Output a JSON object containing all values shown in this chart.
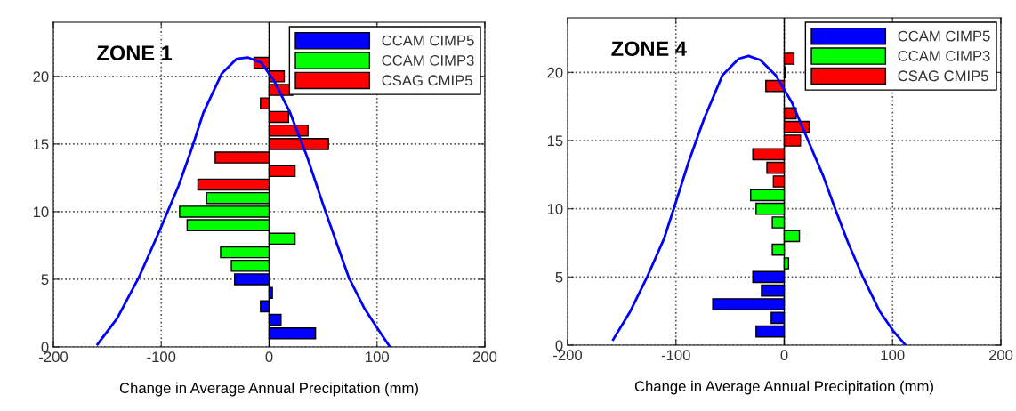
{
  "chart_data": [
    {
      "type": "bar",
      "orientation": "horizontal",
      "title": "ZONE 1",
      "xlabel": "Change in Average Annual Precipitation (mm)",
      "xlim": [
        -200,
        200
      ],
      "xticks": [
        -200,
        -100,
        0,
        100,
        200
      ],
      "ylim": [
        0,
        24
      ],
      "yticks": [
        0,
        5,
        10,
        15,
        20
      ],
      "grid": true,
      "legend": "top right",
      "ref_lines": [
        {
          "axis": "x",
          "value": 0,
          "color": "#000000"
        }
      ],
      "series": [
        {
          "name": "CCAM CIMP5",
          "color": "#0000ff",
          "x": [
            1,
            2,
            3,
            4,
            5
          ],
          "values": [
            43,
            11,
            -8,
            3,
            -32
          ]
        },
        {
          "name": "CCAM CIMP3",
          "color": "#00ff00",
          "x": [
            6,
            7,
            8,
            9,
            10,
            11
          ],
          "values": [
            -35,
            -45,
            24,
            -76,
            -83,
            -58
          ]
        },
        {
          "name": "CSAG CMIP5",
          "color": "#ff0000",
          "x": [
            12,
            13,
            14,
            15,
            16,
            17,
            18,
            19,
            20,
            21
          ],
          "values": [
            -66,
            24,
            -50,
            55,
            36,
            18,
            -8,
            22,
            14,
            -14
          ]
        },
        {
          "type": "line",
          "color": "#0000ff",
          "x": [
            0.2,
            2.1,
            5.1,
            8.7,
            11.9,
            14.6,
            17.3,
            20.2,
            21.3,
            21.4,
            21.0,
            19.6,
            17.4,
            14.1,
            10.3,
            5.1,
            2.9,
            1.3,
            0
          ],
          "values": [
            -159,
            -141,
            -121,
            -101,
            -84,
            -72,
            -61,
            -44,
            -30,
            -20,
            -7,
            5,
            19,
            35,
            51,
            74,
            88,
            101,
            112
          ]
        }
      ]
    },
    {
      "type": "bar",
      "orientation": "horizontal",
      "title": "ZONE 4",
      "xlabel": "Change in Average Annual Precipitation (mm)",
      "xlim": [
        -200,
        200
      ],
      "xticks": [
        -200,
        -100,
        0,
        100,
        200
      ],
      "ylim": [
        0,
        24
      ],
      "yticks": [
        0,
        5,
        10,
        15,
        20
      ],
      "grid": true,
      "legend": "top right",
      "ref_lines": [
        {
          "axis": "x",
          "value": 0,
          "color": "#000000"
        }
      ],
      "series": [
        {
          "name": "CCAM CIMP5",
          "color": "#0000ff",
          "x": [
            1,
            2,
            3,
            4,
            5
          ],
          "values": [
            -26,
            -12,
            -66,
            -21,
            -29
          ]
        },
        {
          "name": "CCAM CIMP3",
          "color": "#00ff00",
          "x": [
            6,
            7,
            8,
            9,
            10,
            11
          ],
          "values": [
            4,
            -11,
            14,
            -11,
            -26,
            -31
          ]
        },
        {
          "name": "CSAG CMIP5",
          "color": "#ff0000",
          "x": [
            12,
            13,
            14,
            15,
            16,
            17,
            18,
            19,
            20,
            21
          ],
          "values": [
            -10,
            -16,
            -29,
            15,
            23,
            11,
            null,
            -17,
            1,
            9
          ]
        },
        {
          "type": "line",
          "color": "#0000ff",
          "x": [
            0.4,
            2.5,
            5.1,
            7.8,
            10.5,
            13.5,
            16.6,
            19.8,
            21.0,
            21.2,
            20.9,
            19.8,
            17.8,
            15.2,
            12.4,
            10.0,
            7.5,
            5.1,
            2.5,
            1.0,
            0
          ],
          "values": [
            -158,
            -142,
            -126,
            -111,
            -100,
            -88,
            -74,
            -57,
            -42,
            -33,
            -22,
            -8,
            7,
            21,
            36,
            47,
            59,
            72,
            88,
            101,
            112
          ]
        }
      ]
    }
  ]
}
